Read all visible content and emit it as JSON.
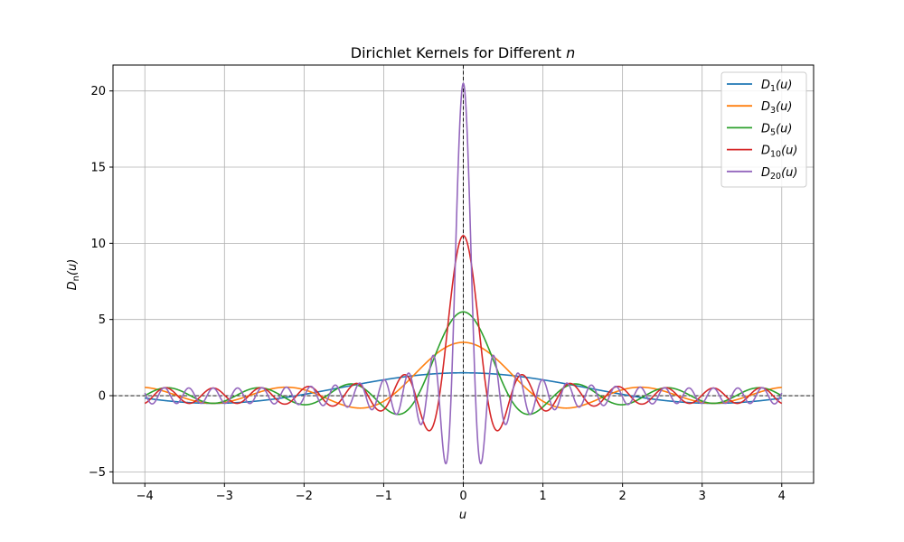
{
  "chart_data": {
    "type": "line",
    "title": "Dirichlet Kernels for Different n",
    "title_plain": "Dirichlet Kernels for Different ",
    "title_italic": "n",
    "xlabel": "u",
    "ylabel_base": "D",
    "ylabel_sub": "n",
    "ylabel_arg": "(u)",
    "xlim": [
      -4.4,
      4.4
    ],
    "ylim": [
      -5.75,
      21.7
    ],
    "xticks": [
      -4,
      -3,
      -2,
      -1,
      0,
      1,
      2,
      3,
      4
    ],
    "xtick_labels": [
      "−4",
      "−3",
      "−2",
      "−1",
      "0",
      "1",
      "2",
      "3",
      "4"
    ],
    "yticks": [
      -5,
      0,
      5,
      10,
      15,
      20
    ],
    "ytick_labels": [
      "−5",
      "0",
      "5",
      "10",
      "15",
      "20"
    ],
    "grid": true,
    "reference_lines": [
      "y = 0 (dashed)",
      "x = 0 (dashed)"
    ],
    "legend_position": "top-right",
    "x_range": [
      -4,
      4
    ],
    "formula": "D_n(u) = sin((n + 1/2) u) / (2 sin(u/2))",
    "series": [
      {
        "name": "D1(u)",
        "label_base": "D",
        "label_sub": "1",
        "label_arg": "(u)",
        "n": 1,
        "color": "#1f77b4"
      },
      {
        "name": "D3(u)",
        "label_base": "D",
        "label_sub": "3",
        "label_arg": "(u)",
        "n": 3,
        "color": "#ff7f0e"
      },
      {
        "name": "D5(u)",
        "label_base": "D",
        "label_sub": "5",
        "label_arg": "(u)",
        "n": 5,
        "color": "#2ca02c"
      },
      {
        "name": "D10(u)",
        "label_base": "D",
        "label_sub": "10",
        "label_arg": "(u)",
        "n": 10,
        "color": "#d62728"
      },
      {
        "name": "D20(u)",
        "label_base": "D",
        "label_sub": "20",
        "label_arg": "(u)",
        "n": 20,
        "color": "#9467bd"
      }
    ]
  }
}
